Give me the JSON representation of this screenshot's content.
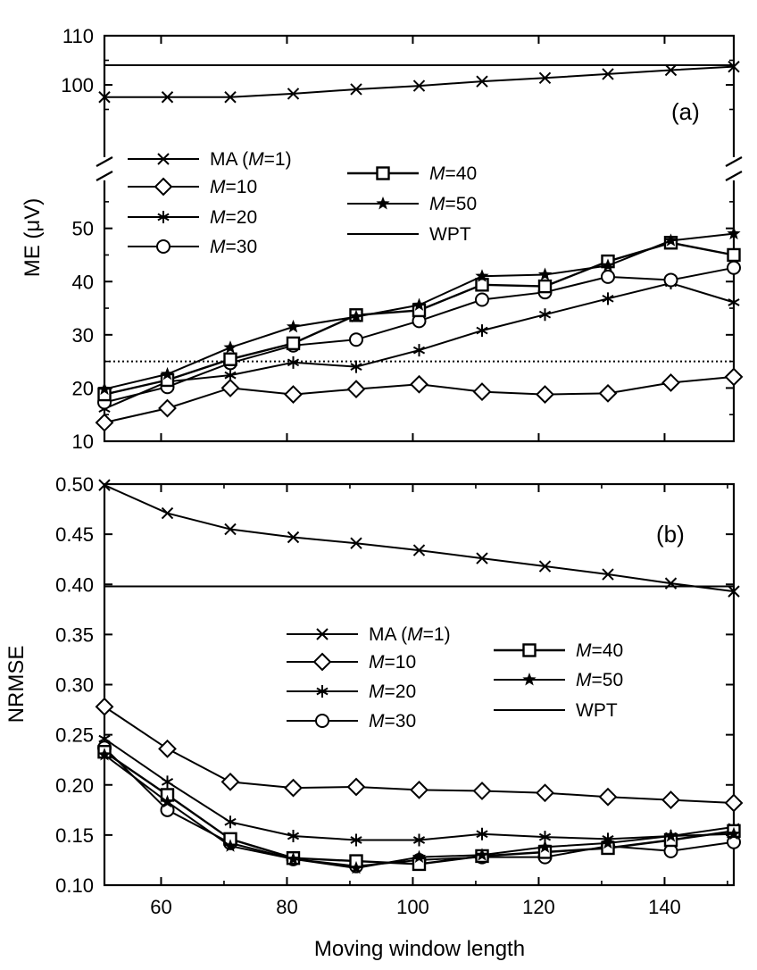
{
  "chart_data": [
    {
      "type": "line",
      "panel_label": "(a)",
      "ylabel": "ME (μV)",
      "x": [
        51,
        61,
        71,
        81,
        91,
        101,
        111,
        121,
        131,
        141,
        151
      ],
      "xlim": [
        51,
        151
      ],
      "y_axis_break": true,
      "ylim_lower": [
        10,
        58
      ],
      "ylim_upper": [
        90,
        110
      ],
      "yticks_lower": [
        10,
        20,
        30,
        40,
        50
      ],
      "yticks_upper": [
        100,
        110
      ],
      "reference_line_dotted": 25,
      "series": [
        {
          "name": "MA (M=1)",
          "legend": [
            "MA (",
            "M",
            "=1)"
          ],
          "marker": "x",
          "values": [
            97.5,
            97.5,
            97.5,
            98.2,
            99.1,
            99.8,
            100.7,
            101.4,
            102.2,
            103.0,
            103.7
          ]
        },
        {
          "name": "M=10",
          "legend": [
            "",
            "M",
            "=10"
          ],
          "marker": "diamond",
          "values": [
            13.5,
            16.2,
            20.0,
            18.8,
            19.8,
            20.7,
            19.3,
            18.8,
            19.0,
            21.0,
            22.1
          ]
        },
        {
          "name": "M=20",
          "legend": [
            "",
            "M",
            "=20"
          ],
          "marker": "asterisk",
          "values": [
            16.1,
            21.2,
            22.4,
            24.8,
            24.0,
            27.1,
            30.8,
            33.8,
            36.8,
            39.7,
            36.1
          ]
        },
        {
          "name": "M=30",
          "legend": [
            "",
            "M",
            "=30"
          ],
          "marker": "circle",
          "values": [
            17.3,
            20.2,
            24.7,
            28.0,
            29.1,
            32.6,
            36.6,
            38.0,
            40.9,
            40.3,
            42.6
          ]
        },
        {
          "name": "M=40",
          "legend": [
            "",
            "M",
            "=40"
          ],
          "marker": "square",
          "values": [
            18.8,
            21.5,
            25.4,
            28.4,
            33.7,
            34.6,
            39.4,
            39.1,
            43.8,
            47.3,
            45.0
          ]
        },
        {
          "name": "M=50",
          "legend": [
            "",
            "M",
            "=50"
          ],
          "marker": "star",
          "values": [
            19.8,
            22.6,
            27.6,
            31.5,
            33.4,
            35.6,
            41.0,
            41.3,
            43.0,
            47.7,
            49.0
          ]
        },
        {
          "name": "WPT",
          "legend": [
            "WPT",
            "",
            ""
          ],
          "marker": "none",
          "values": [
            104,
            104,
            104,
            104,
            104,
            104,
            104,
            104,
            104,
            104,
            104
          ]
        }
      ]
    },
    {
      "type": "line",
      "panel_label": "(b)",
      "ylabel": "NRMSE",
      "xlabel": "Moving window length",
      "x": [
        51,
        61,
        71,
        81,
        91,
        101,
        111,
        121,
        131,
        141,
        151
      ],
      "xlim": [
        51,
        151
      ],
      "xticks": [
        60,
        80,
        100,
        120,
        140
      ],
      "ylim": [
        0.1,
        0.5
      ],
      "yticks": [
        "0.10",
        "0.15",
        "0.20",
        "0.25",
        "0.30",
        "0.35",
        "0.40",
        "0.45",
        "0.50"
      ],
      "series": [
        {
          "name": "MA (M=1)",
          "legend": [
            "MA (",
            "M",
            "=1)"
          ],
          "marker": "x",
          "values": [
            0.499,
            0.471,
            0.455,
            0.447,
            0.441,
            0.434,
            0.426,
            0.418,
            0.41,
            0.401,
            0.393
          ]
        },
        {
          "name": "M=10",
          "legend": [
            "",
            "M",
            "=10"
          ],
          "marker": "diamond",
          "values": [
            0.278,
            0.236,
            0.203,
            0.197,
            0.198,
            0.195,
            0.194,
            0.192,
            0.188,
            0.185,
            0.182
          ]
        },
        {
          "name": "M=20",
          "legend": [
            "",
            "M",
            "=20"
          ],
          "marker": "asterisk",
          "values": [
            0.246,
            0.203,
            0.163,
            0.149,
            0.145,
            0.145,
            0.151,
            0.148,
            0.146,
            0.149,
            0.158
          ]
        },
        {
          "name": "M=30",
          "legend": [
            "",
            "M",
            "=30"
          ],
          "marker": "circle",
          "values": [
            0.237,
            0.175,
            0.142,
            0.126,
            0.119,
            0.125,
            0.128,
            0.128,
            0.139,
            0.134,
            0.143
          ]
        },
        {
          "name": "M=40",
          "legend": [
            "",
            "M",
            "=40"
          ],
          "marker": "square",
          "values": [
            0.233,
            0.19,
            0.146,
            0.127,
            0.124,
            0.121,
            0.129,
            0.133,
            0.137,
            0.145,
            0.154
          ]
        },
        {
          "name": "M=50",
          "legend": [
            "",
            "M",
            "=50"
          ],
          "marker": "star",
          "values": [
            0.23,
            0.183,
            0.139,
            0.126,
            0.117,
            0.128,
            0.13,
            0.138,
            0.142,
            0.149,
            0.151
          ]
        },
        {
          "name": "WPT",
          "legend": [
            "WPT",
            "",
            ""
          ],
          "marker": "none",
          "values": [
            0.398,
            0.398,
            0.398,
            0.398,
            0.398,
            0.398,
            0.398,
            0.398,
            0.398,
            0.398,
            0.398
          ]
        }
      ]
    }
  ]
}
